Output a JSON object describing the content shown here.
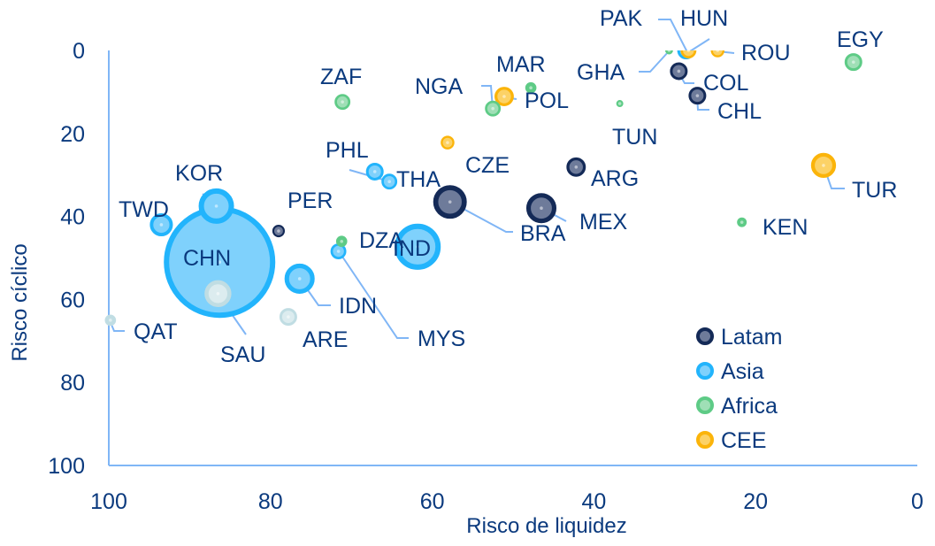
{
  "chart_data": {
    "type": "scatter",
    "subtype": "bubble",
    "xlabel": "Risco de liquidez",
    "ylabel": "Risco cíclico",
    "xlim": [
      100,
      0
    ],
    "ylim": [
      100,
      0
    ],
    "x_reversed": true,
    "y_reversed": true,
    "xticks": [
      "100",
      "80",
      "60",
      "40",
      "20",
      "0"
    ],
    "yticks": [
      "0",
      "20",
      "40",
      "60",
      "80",
      "100"
    ],
    "grid": false,
    "legend_position": "bottom-right",
    "groups": {
      "Latam": {
        "stroke": "#142a57",
        "fill": "#6e7b9a"
      },
      "Asia": {
        "stroke": "#22b4fc",
        "fill": "#7fd1fc"
      },
      "Africa": {
        "stroke": "#5ecb86",
        "fill": "#9fdfb6"
      },
      "CEE": {
        "stroke": "#fbb40a",
        "fill": "#fcd266"
      },
      "Other": {
        "stroke": "#c0dde3",
        "fill": "#dcecef"
      }
    },
    "legend": [
      "Latam",
      "Asia",
      "Africa",
      "CEE"
    ],
    "points": [
      {
        "label": "CHN",
        "group": "Asia",
        "x": 86.3,
        "y": 51.0,
        "size": 39.7
      },
      {
        "label": "KOR",
        "group": "Asia",
        "x": 86.7,
        "y": 37.5,
        "size": 4.0
      },
      {
        "label": "TWD",
        "group": "Asia",
        "x": 93.5,
        "y": 42.0,
        "size": 1.7
      },
      {
        "label": "SAU",
        "group": "Other",
        "x": 86.5,
        "y": 58.6,
        "size": 2.3
      },
      {
        "label": "PER",
        "group": "Latam",
        "x": 79.0,
        "y": 43.5,
        "size": 0.5
      },
      {
        "label": "QAT",
        "group": "Other",
        "x": 99.8,
        "y": 65.0,
        "size": 0.4
      },
      {
        "label": "ARE",
        "group": "Other",
        "x": 77.8,
        "y": 64.2,
        "size": 1.0
      },
      {
        "label": "IDN",
        "group": "Asia",
        "x": 76.4,
        "y": 55.0,
        "size": 2.9
      },
      {
        "label": "DZA",
        "group": "Africa",
        "x": 71.2,
        "y": 46.0,
        "size": 0.4
      },
      {
        "label": "MYS",
        "group": "Asia",
        "x": 71.6,
        "y": 48.4,
        "size": 0.8
      },
      {
        "label": "IND",
        "group": "Asia",
        "x": 61.8,
        "y": 47.3,
        "size": 6.8
      },
      {
        "label": "PHL",
        "group": "Asia",
        "x": 67.1,
        "y": 29.2,
        "size": 1.0
      },
      {
        "label": "THA",
        "group": "Asia",
        "x": 65.3,
        "y": 31.6,
        "size": 0.8
      },
      {
        "label": "BRA",
        "group": "Latam",
        "x": 57.8,
        "y": 36.5,
        "size": 3.6
      },
      {
        "label": "CZE",
        "group": "CEE",
        "x": 58.1,
        "y": 22.2,
        "size": 0.6
      },
      {
        "label": "MEX",
        "group": "Latam",
        "x": 46.5,
        "y": 38.0,
        "size": 2.9
      },
      {
        "label": "ARG",
        "group": "Latam",
        "x": 42.2,
        "y": 28.1,
        "size": 1.2
      },
      {
        "label": "NGA",
        "group": "Africa",
        "x": 52.5,
        "y": 14.0,
        "size": 0.8
      },
      {
        "label": "POL",
        "group": "CEE",
        "x": 51.1,
        "y": 11.1,
        "size": 1.2
      },
      {
        "label": "MAR",
        "group": "Africa",
        "x": 47.8,
        "y": 9.0,
        "size": 0.4
      },
      {
        "label": "ZAF",
        "group": "Africa",
        "x": 71.1,
        "y": 12.4,
        "size": 0.8
      },
      {
        "label": "TUN",
        "group": "Africa",
        "x": 36.8,
        "y": 12.8,
        "size": 0.16
      },
      {
        "label": "GHA",
        "group": "Africa",
        "x": 30.7,
        "y": 0.0,
        "size": 0.2
      },
      {
        "label": "PAK",
        "group": "Asia",
        "x": 28.6,
        "y": 0.0,
        "size": 1.0
      },
      {
        "label": "HUN",
        "group": "CEE",
        "x": 28.3,
        "y": 0.0,
        "size": 0.8
      },
      {
        "label": "ROU",
        "group": "CEE",
        "x": 24.7,
        "y": 0.0,
        "size": 0.6
      },
      {
        "label": "COL",
        "group": "Latam",
        "x": 29.5,
        "y": 5.0,
        "size": 1.0
      },
      {
        "label": "CHL",
        "group": "Latam",
        "x": 27.2,
        "y": 10.9,
        "size": 1.0
      },
      {
        "label": "EGY",
        "group": "Africa",
        "x": 7.9,
        "y": 2.8,
        "size": 1.0
      },
      {
        "label": "KEN",
        "group": "Africa",
        "x": 21.7,
        "y": 41.4,
        "size": 0.3
      },
      {
        "label": "TUR",
        "group": "CEE",
        "x": 11.6,
        "y": 27.7,
        "size": 2.0
      }
    ]
  }
}
